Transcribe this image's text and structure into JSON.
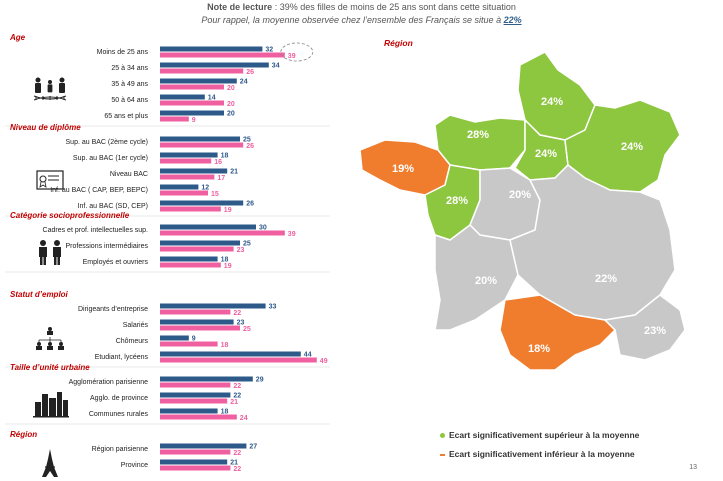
{
  "header": {
    "line1_label": "Note de lecture",
    "line1_text": " : 39% des filles de moins de 25 ans sont dans cette situation",
    "line2_text": "Pour rappel, la moyenne observée chez l’ensemble des Français se situe à ",
    "line2_value": "22%"
  },
  "colors": {
    "series_a": "#2e5a8a",
    "series_b": "#f05fa0",
    "section": "#c00000",
    "above": "#8dc63f",
    "below": "#ef7d2d",
    "neutral": "#c8c8c8"
  },
  "chart_data": {
    "type": "bar",
    "orientation": "horizontal",
    "groups": [
      {
        "title": "Age",
        "icon": "family-dna-icon",
        "items": [
          {
            "label": "Moins de 25 ans",
            "a": 32,
            "b": 39,
            "highlight": true
          },
          {
            "label": "25 à 34 ans",
            "a": 34,
            "b": 26
          },
          {
            "label": "35 à 49 ans",
            "a": 24,
            "b": 20
          },
          {
            "label": "50 à 64 ans",
            "a": 14,
            "b": 20
          },
          {
            "label": "65 ans et plus",
            "a": 20,
            "b": 9
          }
        ]
      },
      {
        "title": "Niveau de diplôme",
        "icon": "diploma-icon",
        "items": [
          {
            "label": "Sup. au BAC (2ème cycle)",
            "a": 25,
            "b": 26
          },
          {
            "label": "Sup. au BAC (1er  cycle)",
            "a": 18,
            "b": 16
          },
          {
            "label": "Niveau BAC",
            "a": 21,
            "b": 17
          },
          {
            "label": "Inf. au BAC ( CAP, BEP, BEPC)",
            "a": 12,
            "b": 15
          },
          {
            "label": "Inf. au BAC (SD, CEP)",
            "a": 26,
            "b": 19
          }
        ]
      },
      {
        "title": "Catégorie socioprofessionnelle",
        "icon": "workers-icon",
        "items": [
          {
            "label": "Cadres et prof. intellectuelles sup.",
            "a": 30,
            "b": 39
          },
          {
            "label": "Professions intermédiaires",
            "a": 25,
            "b": 23
          },
          {
            "label": "Employés et ouvriers",
            "a": 18,
            "b": 19
          }
        ]
      },
      {
        "title": "Statut d’emploi",
        "icon": "org-chart-icon",
        "items": [
          {
            "label": "Dirigeants d’entreprise",
            "a": 33,
            "b": 22
          },
          {
            "label": "Salariés",
            "a": 23,
            "b": 25
          },
          {
            "label": "Chômeurs",
            "a": 9,
            "b": 18
          },
          {
            "label": "Etudiant, lycéens",
            "a": 44,
            "b": 49
          }
        ]
      },
      {
        "title": "Taille d’unité urbaine",
        "icon": "city-icon",
        "items": [
          {
            "label": "Agglomération parisienne",
            "a": 29,
            "b": 22
          },
          {
            "label": "Agglo. de province",
            "a": 22,
            "b": 21
          },
          {
            "label": "Communes rurales",
            "a": 18,
            "b": 24
          }
        ]
      },
      {
        "title": "Région",
        "icon": "eiffel-tower-icon",
        "items": [
          {
            "label": "Région parisienne",
            "a": 27,
            "b": 22
          },
          {
            "label": "Province",
            "a": 21,
            "b": 22
          }
        ]
      }
    ],
    "xlim": [
      0,
      50
    ]
  },
  "map": {
    "title": "Région",
    "regions": [
      {
        "value": "24%",
        "status": "above"
      },
      {
        "value": "28%",
        "status": "above"
      },
      {
        "value": "24%",
        "status": "above"
      },
      {
        "value": "24%",
        "status": "above"
      },
      {
        "value": "19%",
        "status": "below"
      },
      {
        "value": "28%",
        "status": "above"
      },
      {
        "value": "20%",
        "status": "neutral"
      },
      {
        "value": "20%",
        "status": "neutral"
      },
      {
        "value": "22%",
        "status": "neutral"
      },
      {
        "value": "18%",
        "status": "below"
      },
      {
        "value": "23%",
        "status": "neutral"
      }
    ]
  },
  "legend": {
    "above": "Ecart significativement supérieur à la moyenne",
    "below": "Ecart significativement inférieur à la moyenne"
  },
  "page_number": "13"
}
